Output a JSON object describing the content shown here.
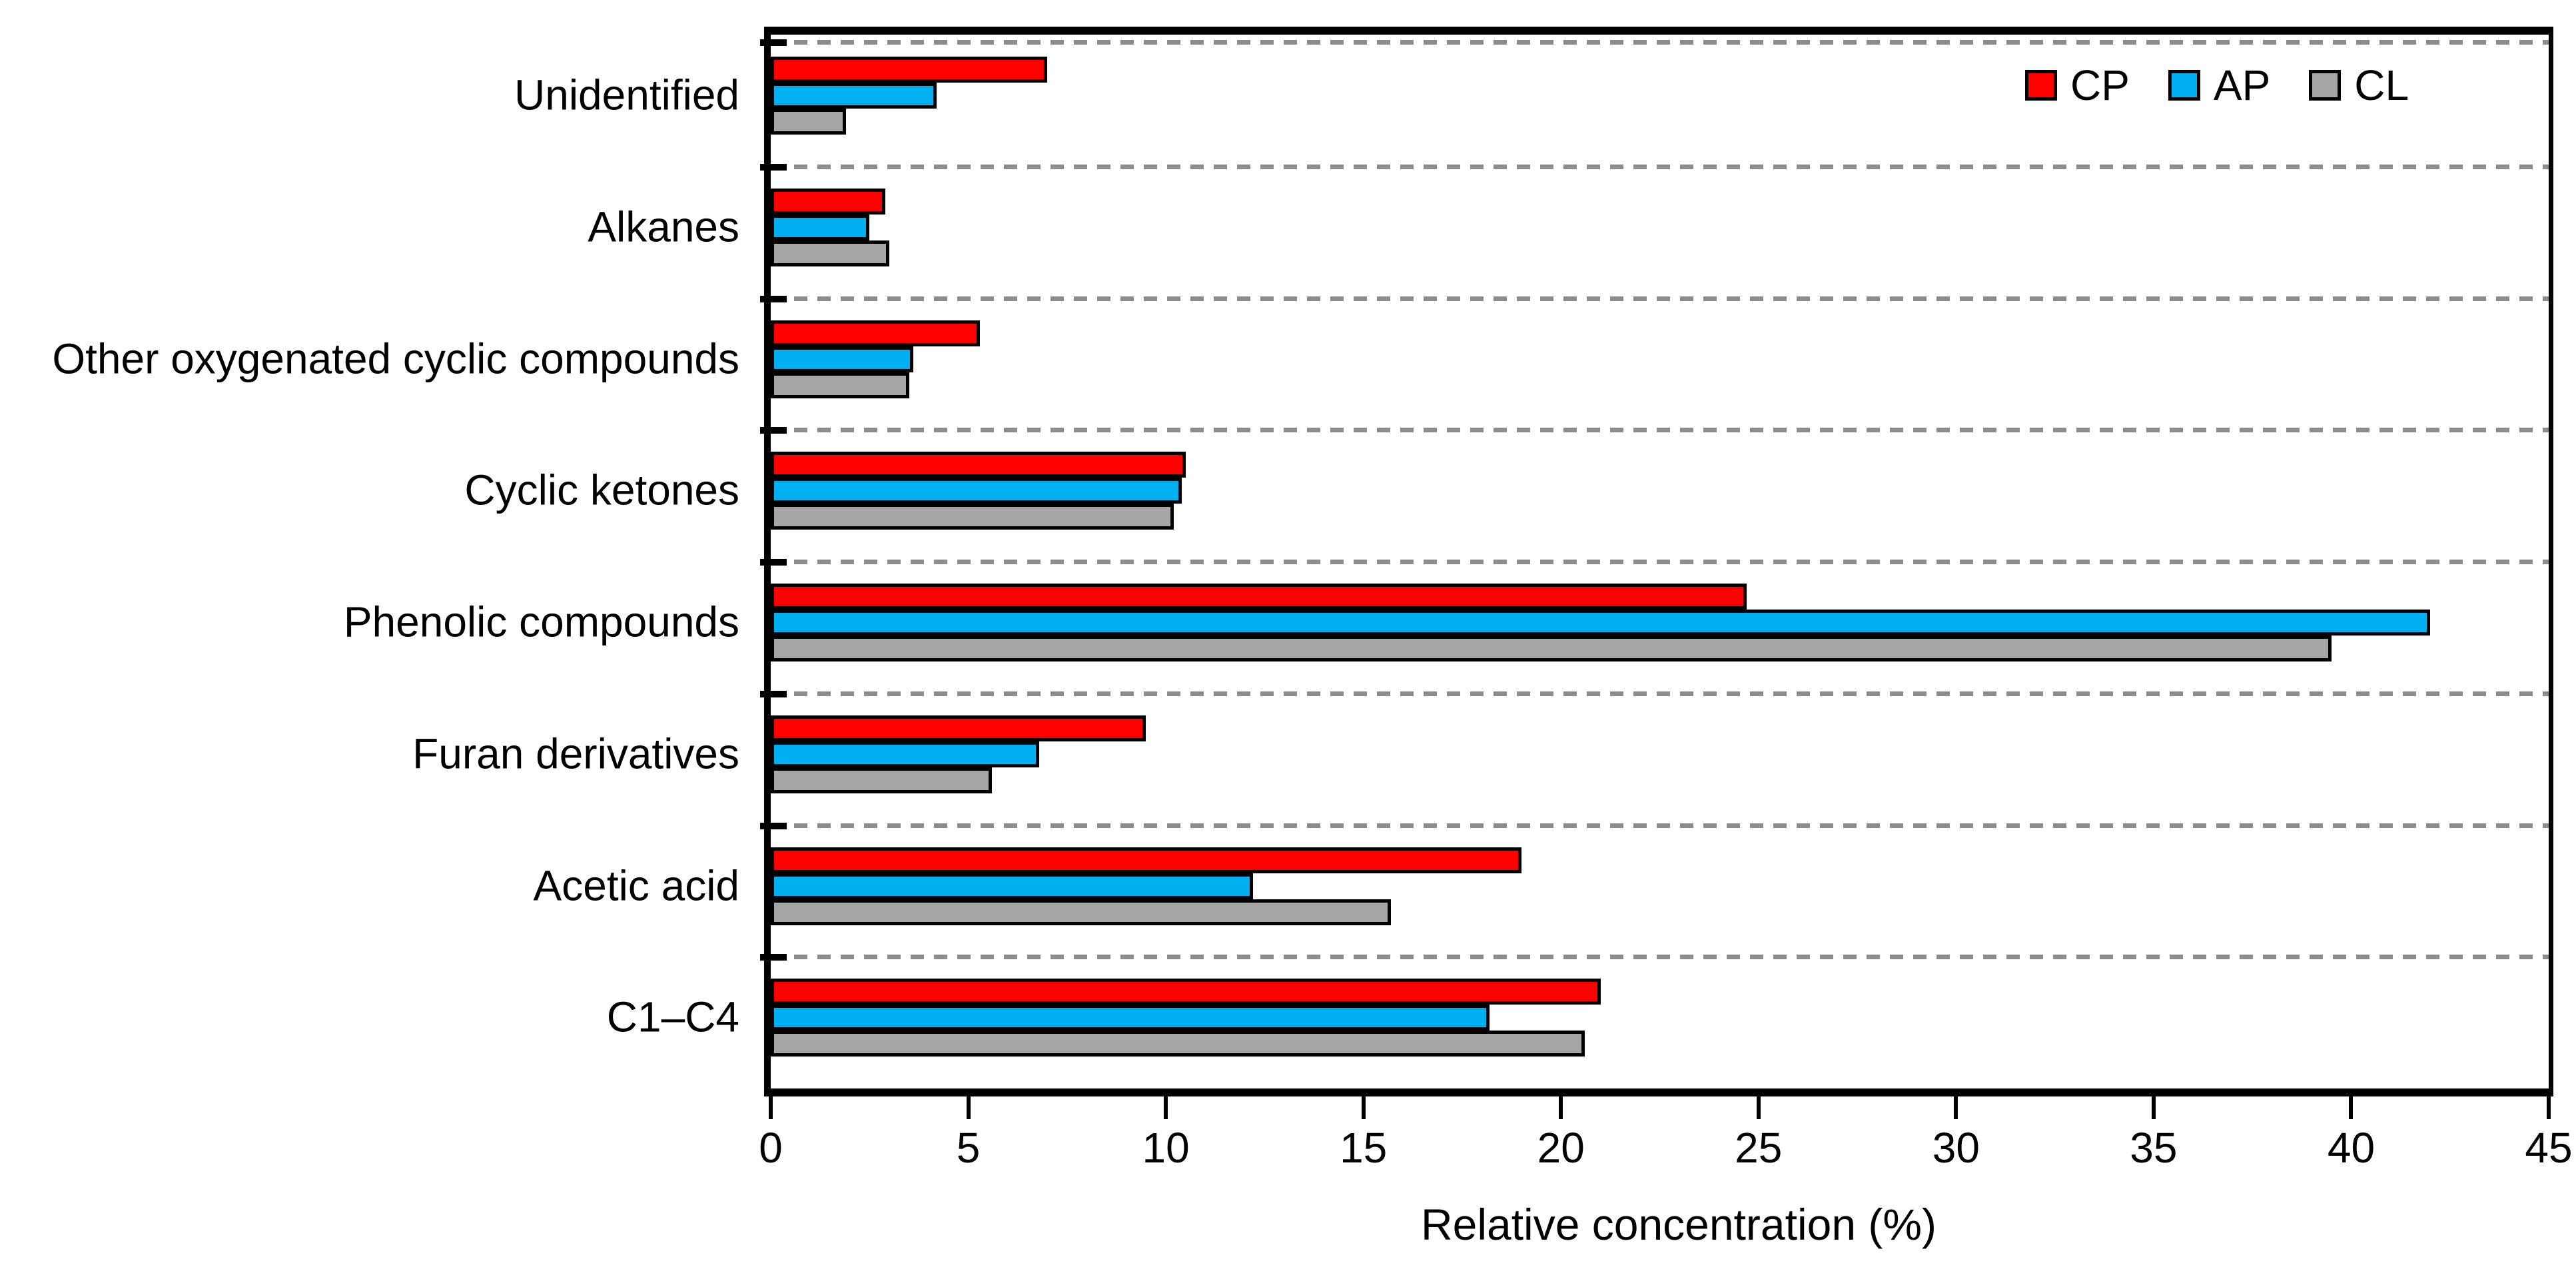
{
  "chart_data": {
    "type": "bar",
    "orientation": "horizontal",
    "title": "",
    "xlabel": "Relative concentration (%)",
    "ylabel": "",
    "xlim": [
      0,
      45
    ],
    "xticks": [
      0,
      5,
      10,
      15,
      20,
      25,
      30,
      35,
      40,
      45
    ],
    "grid": "dashed gray horizontal separator lines between category groups",
    "legend_position": "top-right inside plot area",
    "categories": [
      "Unidentified",
      "Alkanes",
      "Other oxygenated cyclic compounds",
      "Cyclic ketones",
      "Phenolic compounds",
      "Furan derivatives",
      "Acetic acid",
      "C1–C4"
    ],
    "series": [
      {
        "name": "CP",
        "color": "#ff0000",
        "values": [
          7.0,
          2.9,
          5.3,
          10.5,
          24.7,
          9.5,
          19.0,
          21.0
        ]
      },
      {
        "name": "AP",
        "color": "#00b0f0",
        "values": [
          4.2,
          2.5,
          3.6,
          10.4,
          42.0,
          6.8,
          12.2,
          18.2
        ]
      },
      {
        "name": "CL",
        "color": "#a6a6a6",
        "values": [
          1.9,
          3.0,
          3.5,
          10.2,
          39.5,
          5.6,
          15.7,
          20.6
        ]
      }
    ]
  },
  "axis": {
    "title": "Relative concentration (%)",
    "tick_labels": [
      "0",
      "5",
      "10",
      "15",
      "20",
      "25",
      "30",
      "35",
      "40",
      "45"
    ]
  },
  "legend": {
    "items": [
      {
        "label": "CP",
        "color": "#ff0000"
      },
      {
        "label": "AP",
        "color": "#00b0f0"
      },
      {
        "label": "CL",
        "color": "#a6a6a6"
      }
    ]
  },
  "colors": {
    "bar_border": "#000000",
    "separator": "#8c8c8c",
    "background": "#ffffff"
  }
}
